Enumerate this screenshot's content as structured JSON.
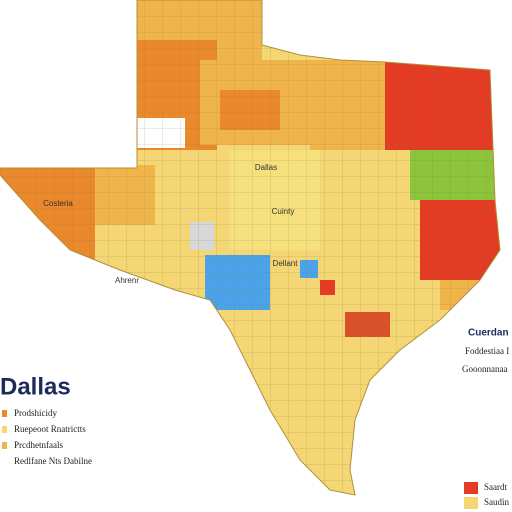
{
  "title": "Dallas",
  "legend": {
    "items": [
      "Prodshicidy",
      "Ruepeoot Rnatrictts",
      "Prcdhetnfaals",
      "Redlfane Nts Dabilne"
    ]
  },
  "right_legend": {
    "title": "Cuerdan",
    "lines": [
      "Foddestiaa I",
      "Gooonnanaa"
    ],
    "items": [
      "Saardt",
      "Saudin"
    ]
  },
  "map_labels": [
    "Dallas",
    "Cuinty",
    "Ahrenr",
    "Dellant",
    "Costeria"
  ]
}
